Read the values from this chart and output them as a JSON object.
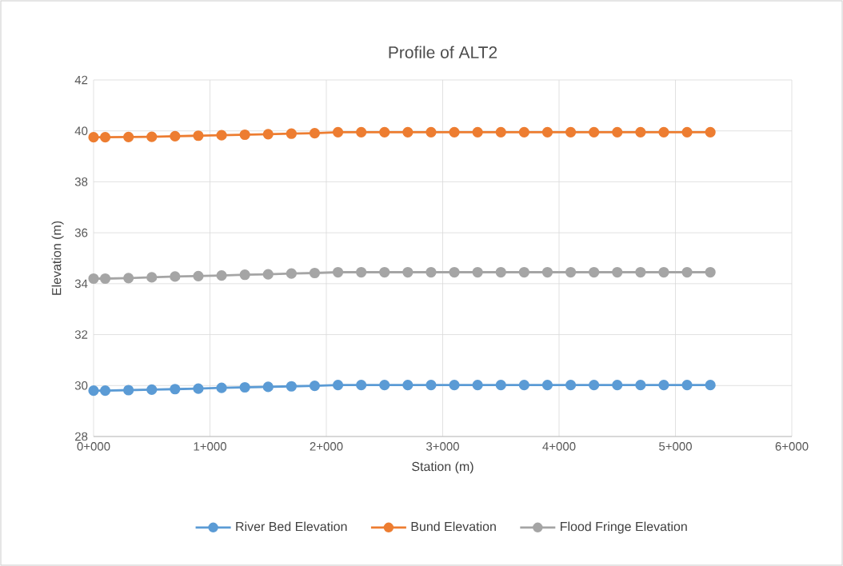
{
  "chart_data": {
    "type": "line",
    "title": "Profile of ALT2",
    "xlabel": "Station (m)",
    "ylabel": "Elevation (m)",
    "categories": [
      "0+000",
      null,
      null,
      null,
      null,
      null,
      null,
      null,
      null,
      null,
      "1+000",
      null,
      null,
      null,
      null,
      null,
      null,
      null,
      null,
      null,
      "2+000",
      null,
      null,
      null,
      null,
      null,
      null,
      null,
      null,
      null,
      "3+000",
      null,
      null,
      null,
      null,
      null,
      null,
      null,
      null,
      null,
      "4+000",
      null,
      null,
      null,
      null,
      null,
      null,
      null,
      null,
      null,
      "5+000",
      null,
      null,
      null,
      null,
      null,
      null,
      null,
      null,
      null,
      "6+000"
    ],
    "series": [
      {
        "name": "River Bed Elevation",
        "color": "#5b9bd5",
        "values": [
          29.8,
          29.8,
          null,
          29.82,
          null,
          29.84,
          null,
          29.86,
          null,
          29.88,
          null,
          29.91,
          null,
          29.93,
          null,
          29.95,
          null,
          29.97,
          null,
          29.99,
          null,
          30.02,
          null,
          30.02,
          null,
          30.02,
          null,
          30.02,
          null,
          30.02,
          null,
          30.02,
          null,
          30.02,
          null,
          30.02,
          null,
          30.02,
          null,
          30.02,
          null,
          30.02,
          null,
          30.02,
          null,
          30.02,
          null,
          30.02,
          null,
          30.02,
          null,
          30.02,
          null,
          30.02,
          null,
          null,
          null,
          null,
          null,
          null,
          null
        ]
      },
      {
        "name": "Bund Elevation",
        "color": "#ed7d31",
        "values": [
          39.75,
          39.75,
          null,
          39.76,
          null,
          39.77,
          null,
          39.79,
          null,
          39.81,
          null,
          39.83,
          null,
          39.85,
          null,
          39.87,
          null,
          39.89,
          null,
          39.91,
          null,
          39.95,
          null,
          39.95,
          null,
          39.95,
          null,
          39.95,
          null,
          39.95,
          null,
          39.95,
          null,
          39.95,
          null,
          39.95,
          null,
          39.95,
          null,
          39.95,
          null,
          39.95,
          null,
          39.95,
          null,
          39.95,
          null,
          39.95,
          null,
          39.95,
          null,
          39.95,
          null,
          39.95,
          null,
          null,
          null,
          null,
          null,
          null,
          null
        ]
      },
      {
        "name": "Flood Fringe Elevation",
        "color": "#a5a5a5",
        "values": [
          34.2,
          34.2,
          null,
          34.22,
          null,
          34.25,
          null,
          34.28,
          null,
          34.3,
          null,
          34.32,
          null,
          34.35,
          null,
          34.37,
          null,
          34.4,
          null,
          34.42,
          null,
          34.45,
          null,
          34.45,
          null,
          34.45,
          null,
          34.45,
          null,
          34.45,
          null,
          34.45,
          null,
          34.45,
          null,
          34.45,
          null,
          34.45,
          null,
          34.45,
          null,
          34.45,
          null,
          34.45,
          null,
          34.45,
          null,
          34.45,
          null,
          34.45,
          null,
          34.45,
          null,
          34.45,
          null,
          null,
          null,
          null,
          null,
          null,
          null
        ]
      }
    ],
    "ylim": [
      28,
      42
    ],
    "yticks": [
      28,
      30,
      32,
      34,
      36,
      38,
      40,
      42
    ],
    "grid": true,
    "legend": "bottom",
    "marker": "circle",
    "line_style": "solid"
  }
}
